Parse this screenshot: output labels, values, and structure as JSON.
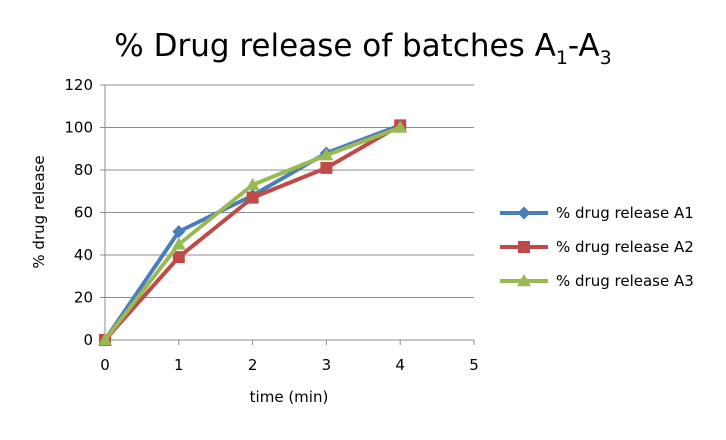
{
  "chart_data": {
    "type": "line",
    "title": {
      "main": "% Drug release of batches A",
      "sub1": "1",
      "sep": "-A",
      "sub2": "3"
    },
    "xlabel": "time (min)",
    "ylabel": "% drug release",
    "xlim": [
      0,
      5
    ],
    "ylim": [
      0,
      120
    ],
    "x_ticks": [
      0,
      1,
      2,
      3,
      4,
      5
    ],
    "y_ticks": [
      0,
      20,
      40,
      60,
      80,
      100,
      120
    ],
    "grid": "horizontal",
    "legend_position": "right",
    "series": [
      {
        "name": "% drug release A1",
        "marker": "diamond",
        "color": "#4a7ebb",
        "x": [
          0,
          1,
          2,
          3,
          4
        ],
        "y": [
          0,
          51,
          68,
          88,
          101
        ]
      },
      {
        "name": "% drug release A2",
        "marker": "square",
        "color": "#be4b48",
        "x": [
          0,
          1,
          2,
          3,
          4
        ],
        "y": [
          0,
          39,
          67,
          81,
          101
        ]
      },
      {
        "name": "% drug release A3",
        "marker": "triangle",
        "color": "#98b954",
        "x": [
          0,
          1,
          2,
          3,
          4
        ],
        "y": [
          0,
          45,
          73,
          87,
          100
        ]
      }
    ]
  }
}
